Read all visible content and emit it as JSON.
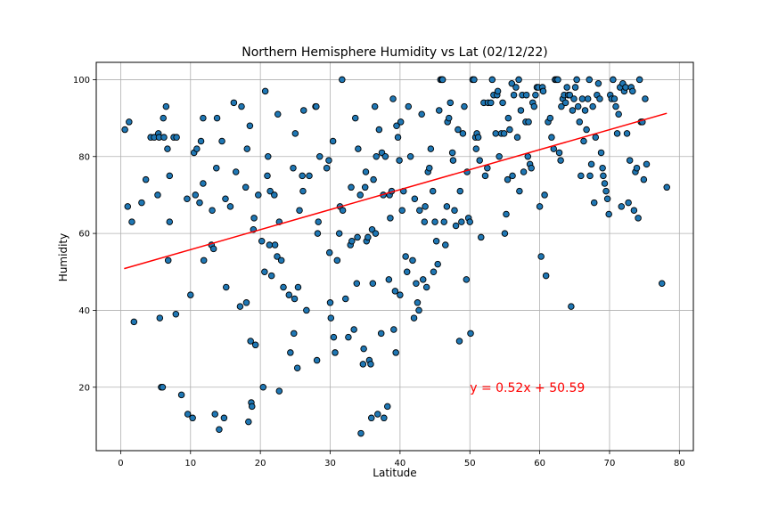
{
  "chart_data": {
    "type": "scatter",
    "title": "Northern Hemisphere Humidity vs Lat (02/12/22)",
    "xlabel": "Latitude",
    "ylabel": "Humidity",
    "xlim": [
      -3.5,
      82
    ],
    "ylim": [
      3.5,
      104.5
    ],
    "xticks": [
      0,
      10,
      20,
      30,
      40,
      50,
      60,
      70,
      80
    ],
    "yticks": [
      20,
      40,
      60,
      80,
      100
    ],
    "grid": true,
    "point_color": "#1f77b4",
    "point_edge_color": "#000000",
    "regression": {
      "slope": 0.52,
      "intercept": 50.59,
      "x_range": [
        0.5,
        78.2
      ],
      "color": "#ff0000"
    },
    "annotation": {
      "text": "y = 0.52x + 50.59",
      "x": 50,
      "y": 20,
      "color": "#ff0000"
    },
    "points": [
      [
        0.6,
        87
      ],
      [
        1,
        67
      ],
      [
        1.2,
        89
      ],
      [
        1.6,
        63
      ],
      [
        1.9,
        37
      ],
      [
        3,
        68
      ],
      [
        3.6,
        74
      ],
      [
        4.3,
        85
      ],
      [
        4.8,
        85
      ],
      [
        5.3,
        70
      ],
      [
        5.4,
        86
      ],
      [
        5.5,
        85
      ],
      [
        5.6,
        38
      ],
      [
        5.8,
        20
      ],
      [
        6,
        20
      ],
      [
        6.1,
        90
      ],
      [
        6.2,
        85
      ],
      [
        6.5,
        93
      ],
      [
        6.7,
        82
      ],
      [
        6.8,
        53
      ],
      [
        7,
        63
      ],
      [
        7,
        75
      ],
      [
        7.6,
        85
      ],
      [
        7.9,
        39
      ],
      [
        8,
        85
      ],
      [
        8.7,
        18
      ],
      [
        9.5,
        69
      ],
      [
        9.6,
        13
      ],
      [
        10,
        44
      ],
      [
        10.3,
        12
      ],
      [
        10.5,
        81
      ],
      [
        10.7,
        70
      ],
      [
        10.9,
        82
      ],
      [
        11.3,
        68
      ],
      [
        11.5,
        84
      ],
      [
        11.8,
        73
      ],
      [
        11.8,
        90
      ],
      [
        11.9,
        53
      ],
      [
        13,
        57
      ],
      [
        13.1,
        66
      ],
      [
        13.3,
        56
      ],
      [
        13.5,
        13
      ],
      [
        13.7,
        77
      ],
      [
        13.8,
        90
      ],
      [
        14.1,
        9
      ],
      [
        14.5,
        84
      ],
      [
        14.8,
        12
      ],
      [
        15,
        69
      ],
      [
        15.1,
        46
      ],
      [
        15.7,
        67
      ],
      [
        16.2,
        94
      ],
      [
        16.5,
        76
      ],
      [
        17.1,
        41
      ],
      [
        17.3,
        93
      ],
      [
        17.9,
        72
      ],
      [
        18,
        42
      ],
      [
        18.1,
        82
      ],
      [
        18.3,
        11
      ],
      [
        18.5,
        88
      ],
      [
        18.6,
        32
      ],
      [
        18.7,
        16
      ],
      [
        18.8,
        15
      ],
      [
        19,
        61
      ],
      [
        19.1,
        64
      ],
      [
        19.3,
        31
      ],
      [
        19.7,
        70
      ],
      [
        20.2,
        58
      ],
      [
        20.4,
        20
      ],
      [
        20.6,
        50
      ],
      [
        20.7,
        97
      ],
      [
        21,
        75
      ],
      [
        21.1,
        80
      ],
      [
        21.3,
        57
      ],
      [
        21.4,
        71
      ],
      [
        21.6,
        49
      ],
      [
        22,
        70
      ],
      [
        22.1,
        57
      ],
      [
        22.4,
        54
      ],
      [
        22.5,
        91
      ],
      [
        22.7,
        63
      ],
      [
        22.7,
        19
      ],
      [
        23,
        53
      ],
      [
        23.3,
        46
      ],
      [
        24.1,
        44
      ],
      [
        24.3,
        29
      ],
      [
        24.7,
        77
      ],
      [
        24.8,
        34
      ],
      [
        24.9,
        43
      ],
      [
        25,
        86
      ],
      [
        25.3,
        25
      ],
      [
        25.4,
        46
      ],
      [
        25.6,
        66
      ],
      [
        26,
        75
      ],
      [
        26.1,
        71
      ],
      [
        26.2,
        92
      ],
      [
        26.6,
        40
      ],
      [
        27,
        75
      ],
      [
        27.9,
        93
      ],
      [
        28,
        93
      ],
      [
        28.1,
        27
      ],
      [
        28.2,
        60
      ],
      [
        28.3,
        63
      ],
      [
        28.5,
        80
      ],
      [
        29.5,
        77
      ],
      [
        29.8,
        79
      ],
      [
        29.9,
        55
      ],
      [
        30,
        42
      ],
      [
        30.1,
        38
      ],
      [
        30.4,
        84
      ],
      [
        30.5,
        33
      ],
      [
        30.7,
        29
      ],
      [
        31,
        53
      ],
      [
        31.3,
        60
      ],
      [
        31.4,
        67
      ],
      [
        31.7,
        100
      ],
      [
        31.8,
        66
      ],
      [
        32.2,
        43
      ],
      [
        32.6,
        33
      ],
      [
        32.9,
        57
      ],
      [
        33,
        72
      ],
      [
        33.1,
        58
      ],
      [
        33.4,
        35
      ],
      [
        33.6,
        90
      ],
      [
        33.8,
        47
      ],
      [
        33.9,
        59
      ],
      [
        34,
        82
      ],
      [
        34.3,
        70
      ],
      [
        34.4,
        8
      ],
      [
        34.7,
        26
      ],
      [
        34.8,
        30
      ],
      [
        35,
        72
      ],
      [
        35.1,
        76
      ],
      [
        35.2,
        58
      ],
      [
        35.4,
        59
      ],
      [
        35.6,
        27
      ],
      [
        35.8,
        26
      ],
      [
        35.9,
        12
      ],
      [
        36,
        61
      ],
      [
        36.1,
        47
      ],
      [
        36.2,
        74
      ],
      [
        36.4,
        93
      ],
      [
        36.5,
        60
      ],
      [
        36.6,
        80
      ],
      [
        36.8,
        13
      ],
      [
        37,
        87
      ],
      [
        37.3,
        34
      ],
      [
        37.4,
        81
      ],
      [
        37.6,
        70
      ],
      [
        37.7,
        12
      ],
      [
        37.9,
        80
      ],
      [
        38.2,
        15
      ],
      [
        38.4,
        48
      ],
      [
        38.5,
        70
      ],
      [
        38.6,
        64
      ],
      [
        38.8,
        71
      ],
      [
        39,
        95
      ],
      [
        39.1,
        35
      ],
      [
        39.3,
        45
      ],
      [
        39.4,
        29
      ],
      [
        39.5,
        88
      ],
      [
        39.7,
        85
      ],
      [
        39.9,
        79
      ],
      [
        40,
        44
      ],
      [
        40.1,
        89
      ],
      [
        40.3,
        66
      ],
      [
        40.5,
        71
      ],
      [
        40.8,
        54
      ],
      [
        41,
        50
      ],
      [
        41.2,
        93
      ],
      [
        41.5,
        80
      ],
      [
        41.8,
        53
      ],
      [
        42,
        38
      ],
      [
        42.1,
        69
      ],
      [
        42.3,
        47
      ],
      [
        42.5,
        42
      ],
      [
        42.7,
        40
      ],
      [
        42.8,
        66
      ],
      [
        43.1,
        91
      ],
      [
        43.3,
        48
      ],
      [
        43.5,
        63
      ],
      [
        43.6,
        67
      ],
      [
        43.8,
        46
      ],
      [
        44,
        76
      ],
      [
        44.2,
        77
      ],
      [
        44.4,
        82
      ],
      [
        44.7,
        71
      ],
      [
        44.8,
        50
      ],
      [
        45,
        63
      ],
      [
        45.2,
        58
      ],
      [
        45.4,
        52
      ],
      [
        45.6,
        92
      ],
      [
        45.8,
        100
      ],
      [
        46,
        100
      ],
      [
        46.1,
        100
      ],
      [
        46.3,
        63
      ],
      [
        46.5,
        57
      ],
      [
        46.7,
        67
      ],
      [
        46.8,
        89
      ],
      [
        47,
        90
      ],
      [
        47.2,
        94
      ],
      [
        47.5,
        81
      ],
      [
        47.6,
        79
      ],
      [
        47.8,
        66
      ],
      [
        48,
        62
      ],
      [
        48.3,
        87
      ],
      [
        48.5,
        32
      ],
      [
        48.6,
        71
      ],
      [
        48.8,
        63
      ],
      [
        49,
        86
      ],
      [
        49.2,
        93
      ],
      [
        49.5,
        48
      ],
      [
        49.6,
        76
      ],
      [
        49.8,
        64
      ],
      [
        50,
        63
      ],
      [
        50.1,
        34
      ],
      [
        50.4,
        100
      ],
      [
        50.6,
        100
      ],
      [
        50.8,
        85
      ],
      [
        50.9,
        82
      ],
      [
        51,
        86
      ],
      [
        51.2,
        85
      ],
      [
        51.4,
        79
      ],
      [
        51.6,
        59
      ],
      [
        52,
        94
      ],
      [
        52.2,
        75
      ],
      [
        52.5,
        77
      ],
      [
        52.6,
        94
      ],
      [
        53,
        94
      ],
      [
        53.2,
        100
      ],
      [
        53.4,
        96
      ],
      [
        53.7,
        86
      ],
      [
        53.9,
        96
      ],
      [
        54,
        97
      ],
      [
        54.2,
        80
      ],
      [
        54.5,
        86
      ],
      [
        54.7,
        94
      ],
      [
        54.9,
        86
      ],
      [
        55,
        60
      ],
      [
        55.2,
        65
      ],
      [
        55.4,
        74
      ],
      [
        55.5,
        90
      ],
      [
        55.7,
        87
      ],
      [
        56,
        99
      ],
      [
        56.1,
        75
      ],
      [
        56.3,
        96
      ],
      [
        56.6,
        98
      ],
      [
        56.8,
        85
      ],
      [
        57,
        100
      ],
      [
        57.1,
        71
      ],
      [
        57.3,
        92
      ],
      [
        57.5,
        96
      ],
      [
        57.7,
        76
      ],
      [
        58,
        89
      ],
      [
        58.1,
        96
      ],
      [
        58.3,
        80
      ],
      [
        58.4,
        89
      ],
      [
        58.6,
        78
      ],
      [
        58.8,
        77
      ],
      [
        59,
        94
      ],
      [
        59.2,
        93
      ],
      [
        59.4,
        96
      ],
      [
        59.6,
        98
      ],
      [
        59.8,
        98
      ],
      [
        60,
        67
      ],
      [
        60.2,
        54
      ],
      [
        60.4,
        98
      ],
      [
        60.5,
        97
      ],
      [
        60.7,
        70
      ],
      [
        60.9,
        49
      ],
      [
        61.2,
        89
      ],
      [
        61.5,
        90
      ],
      [
        61.7,
        85
      ],
      [
        62,
        82
      ],
      [
        62.2,
        100
      ],
      [
        62.4,
        100
      ],
      [
        62.6,
        100
      ],
      [
        62.8,
        81
      ],
      [
        63,
        79
      ],
      [
        63.1,
        93
      ],
      [
        63.3,
        95
      ],
      [
        63.5,
        96
      ],
      [
        63.7,
        94
      ],
      [
        63.9,
        98
      ],
      [
        64.1,
        96
      ],
      [
        64.3,
        96
      ],
      [
        64.5,
        41
      ],
      [
        64.7,
        92
      ],
      [
        64.9,
        95
      ],
      [
        65.1,
        98
      ],
      [
        65.3,
        100
      ],
      [
        65.5,
        93
      ],
      [
        65.7,
        89
      ],
      [
        65.9,
        75
      ],
      [
        66.1,
        95
      ],
      [
        66.3,
        84
      ],
      [
        66.5,
        92
      ],
      [
        66.7,
        87
      ],
      [
        66.9,
        95
      ],
      [
        67.1,
        100
      ],
      [
        67.2,
        75
      ],
      [
        67.4,
        78
      ],
      [
        67.6,
        93
      ],
      [
        67.8,
        68
      ],
      [
        68,
        85
      ],
      [
        68.2,
        96
      ],
      [
        68.4,
        99
      ],
      [
        68.6,
        95
      ],
      [
        68.8,
        81
      ],
      [
        69,
        77
      ],
      [
        69.1,
        75
      ],
      [
        69.3,
        73
      ],
      [
        69.5,
        71
      ],
      [
        69.7,
        69
      ],
      [
        69.9,
        65
      ],
      [
        70.1,
        96
      ],
      [
        70.3,
        95
      ],
      [
        70.5,
        100
      ],
      [
        70.7,
        95
      ],
      [
        70.9,
        93
      ],
      [
        71.1,
        86
      ],
      [
        71.3,
        91
      ],
      [
        71.5,
        98
      ],
      [
        71.7,
        67
      ],
      [
        71.9,
        99
      ],
      [
        72.1,
        97
      ],
      [
        72.3,
        98
      ],
      [
        72.5,
        86
      ],
      [
        72.7,
        68
      ],
      [
        72.9,
        79
      ],
      [
        73.1,
        98
      ],
      [
        73.3,
        97
      ],
      [
        73.5,
        66
      ],
      [
        73.7,
        76
      ],
      [
        73.9,
        77
      ],
      [
        74.1,
        64
      ],
      [
        74.3,
        100
      ],
      [
        74.5,
        89
      ],
      [
        74.7,
        89
      ],
      [
        74.9,
        74
      ],
      [
        75.1,
        95
      ],
      [
        75.3,
        78
      ],
      [
        77.5,
        47
      ],
      [
        78.2,
        72
      ]
    ]
  }
}
